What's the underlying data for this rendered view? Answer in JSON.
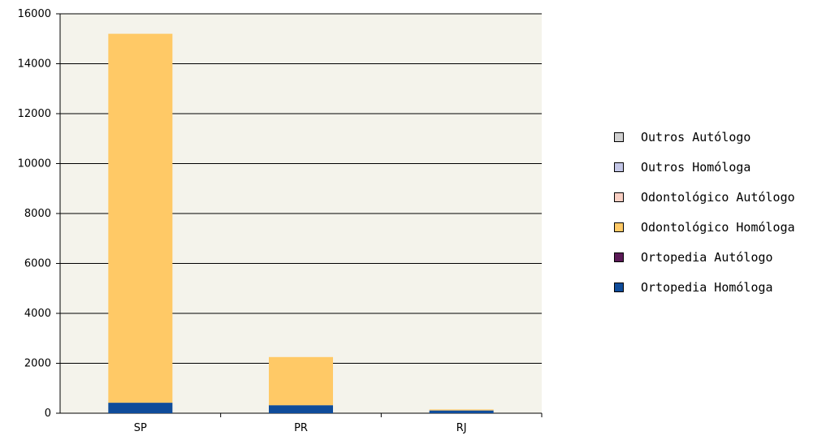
{
  "chart_data": {
    "type": "bar",
    "stacked": true,
    "categories": [
      "SP",
      "PR",
      "RJ"
    ],
    "ylim": [
      0,
      16000
    ],
    "yticks": [
      0,
      2000,
      4000,
      6000,
      8000,
      10000,
      12000,
      14000,
      16000
    ],
    "grid": true,
    "legend_position": "right",
    "series": [
      {
        "name": "Ortopedia Homóloga",
        "color": "#0f4c9a",
        "values": [
          420,
          320,
          110
        ]
      },
      {
        "name": "Ortopedia Autólogo",
        "color": "#5b1a57",
        "values": [
          0,
          0,
          0
        ]
      },
      {
        "name": "Odontológico Homóloga",
        "color": "#ffc966",
        "values": [
          14780,
          1930,
          40
        ]
      },
      {
        "name": "Odontológico Autólogo",
        "color": "#f9cfc3",
        "values": [
          0,
          0,
          0
        ]
      },
      {
        "name": "Outros Homóloga",
        "color": "#c3c6e6",
        "values": [
          0,
          0,
          0
        ]
      },
      {
        "name": "Outros Autólogo",
        "color": "#d0d0d0",
        "values": [
          0,
          0,
          0
        ]
      }
    ],
    "legend_order": [
      "Outros Autólogo",
      "Outros Homóloga",
      "Odontológico Autólogo",
      "Odontológico Homóloga",
      "Ortopedia Autólogo",
      "Ortopedia Homóloga"
    ],
    "plot_background": "#f4f3eb"
  }
}
